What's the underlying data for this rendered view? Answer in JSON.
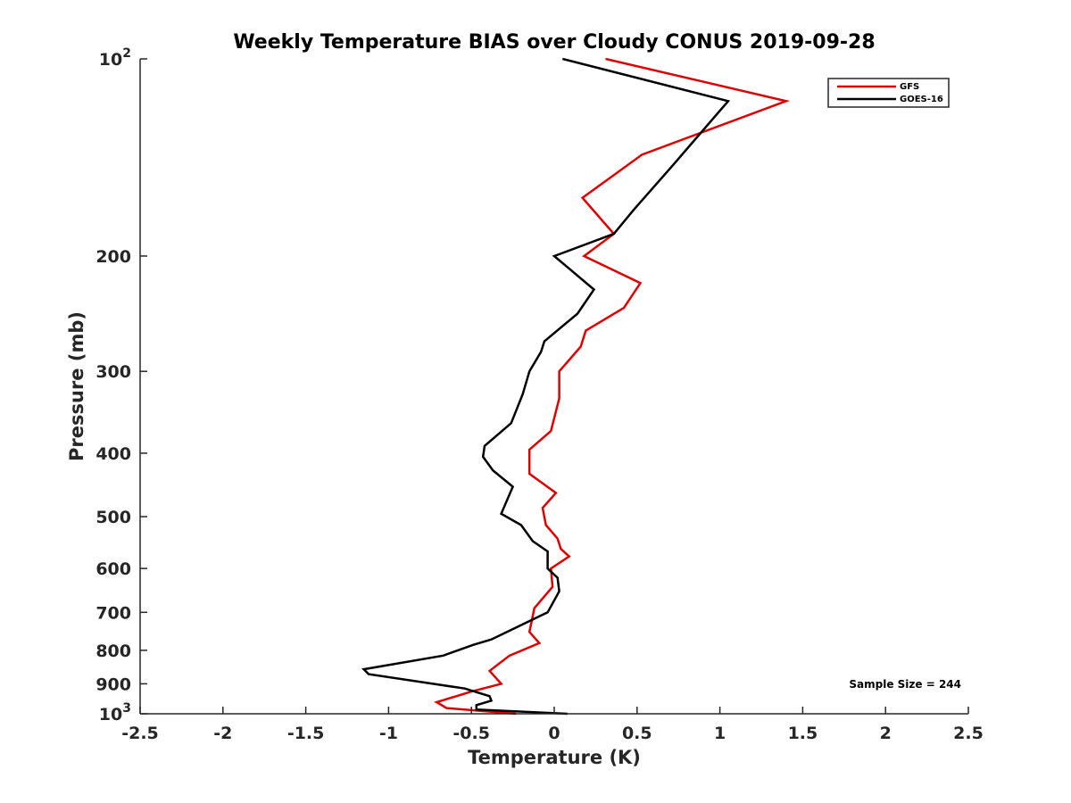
{
  "chart_data": {
    "type": "line",
    "title": "Weekly Temperature BIAS over Cloudy CONUS 2019-09-28",
    "xlabel": "Temperature (K)",
    "ylabel": "Pressure (mb)",
    "xlim": [
      -2.5,
      2.5
    ],
    "ylim": [
      100,
      1000
    ],
    "yscale": "log",
    "y_reversed": true,
    "grid": false,
    "legend_position": "top-right",
    "x_ticks": [
      {
        "value": -2.5,
        "label": "-2.5"
      },
      {
        "value": -2,
        "label": "-2"
      },
      {
        "value": -1.5,
        "label": "-1.5"
      },
      {
        "value": -1,
        "label": "-1"
      },
      {
        "value": -0.5,
        "label": "-0.5"
      },
      {
        "value": 0,
        "label": "0"
      },
      {
        "value": 0.5,
        "label": "0.5"
      },
      {
        "value": 1,
        "label": "1"
      },
      {
        "value": 1.5,
        "label": "1.5"
      },
      {
        "value": 2,
        "label": "2"
      },
      {
        "value": 2.5,
        "label": "2.5"
      }
    ],
    "y_ticks": [
      {
        "value": 100,
        "base": "10",
        "exp": "2"
      },
      {
        "value": 200,
        "label": "200"
      },
      {
        "value": 300,
        "label": "300"
      },
      {
        "value": 400,
        "label": "400"
      },
      {
        "value": 500,
        "label": "500"
      },
      {
        "value": 600,
        "label": "600"
      },
      {
        "value": 700,
        "label": "700"
      },
      {
        "value": 800,
        "label": "800"
      },
      {
        "value": 900,
        "label": "900"
      },
      {
        "value": 1000,
        "base": "10",
        "exp": "3"
      }
    ],
    "series": [
      {
        "name": "GFS",
        "color": "#e00000",
        "points": [
          [
            0.31,
            100
          ],
          [
            1.4,
            116
          ],
          [
            0.53,
            140
          ],
          [
            0.17,
            163
          ],
          [
            0.36,
            185
          ],
          [
            0.18,
            200
          ],
          [
            0.52,
            220
          ],
          [
            0.42,
            240
          ],
          [
            0.19,
            260
          ],
          [
            0.16,
            275
          ],
          [
            0.03,
            300
          ],
          [
            0.03,
            330
          ],
          [
            -0.02,
            370
          ],
          [
            -0.15,
            395
          ],
          [
            -0.15,
            430
          ],
          [
            0.01,
            460
          ],
          [
            -0.07,
            485
          ],
          [
            -0.05,
            515
          ],
          [
            0.02,
            540
          ],
          [
            0.04,
            560
          ],
          [
            0.09,
            575
          ],
          [
            -0.02,
            600
          ],
          [
            -0.01,
            640
          ],
          [
            -0.12,
            690
          ],
          [
            -0.15,
            750
          ],
          [
            -0.09,
            780
          ],
          [
            -0.27,
            815
          ],
          [
            -0.39,
            860
          ],
          [
            -0.32,
            900
          ],
          [
            -0.5,
            925
          ],
          [
            -0.71,
            960
          ],
          [
            -0.65,
            980
          ],
          [
            -0.23,
            1000
          ]
        ]
      },
      {
        "name": "GOES-16",
        "color": "#000000",
        "points": [
          [
            0.05,
            100
          ],
          [
            1.05,
            116
          ],
          [
            0.72,
            145
          ],
          [
            0.48,
            170
          ],
          [
            0.36,
            185
          ],
          [
            0.0,
            200
          ],
          [
            0.24,
            225
          ],
          [
            0.14,
            245
          ],
          [
            -0.06,
            270
          ],
          [
            -0.08,
            280
          ],
          [
            -0.15,
            300
          ],
          [
            -0.19,
            325
          ],
          [
            -0.26,
            360
          ],
          [
            -0.42,
            390
          ],
          [
            -0.43,
            405
          ],
          [
            -0.37,
            425
          ],
          [
            -0.25,
            450
          ],
          [
            -0.32,
            495
          ],
          [
            -0.2,
            515
          ],
          [
            -0.13,
            545
          ],
          [
            -0.04,
            565
          ],
          [
            -0.04,
            600
          ],
          [
            0.02,
            620
          ],
          [
            0.03,
            650
          ],
          [
            -0.04,
            700
          ],
          [
            -0.38,
            770
          ],
          [
            -0.49,
            785
          ],
          [
            -0.67,
            815
          ],
          [
            -1.15,
            855
          ],
          [
            -1.12,
            870
          ],
          [
            -0.54,
            915
          ],
          [
            -0.39,
            940
          ],
          [
            -0.38,
            955
          ],
          [
            -0.47,
            970
          ],
          [
            -0.47,
            985
          ],
          [
            0.08,
            1000
          ]
        ]
      }
    ],
    "annotation": "Sample Size = 244"
  }
}
